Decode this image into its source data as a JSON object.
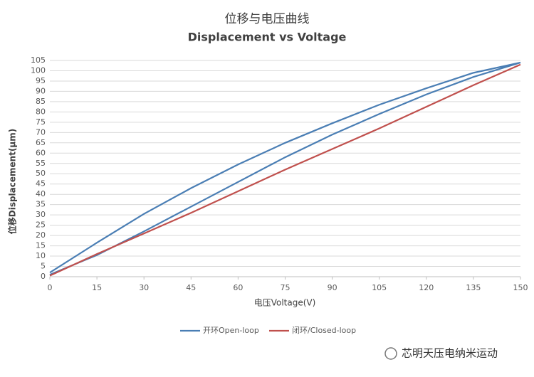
{
  "chart_data": {
    "type": "line",
    "title": "位移与电压曲线",
    "subtitle": "Displacement vs Voltage",
    "x_label": "电压Voltage(V)",
    "y_label": "位移Displacement(μm)",
    "xlim": [
      0,
      150
    ],
    "xticks": [
      0,
      15,
      30,
      45,
      60,
      75,
      90,
      105,
      120,
      135,
      150
    ],
    "ylim": [
      0,
      105
    ],
    "yticks": [
      0,
      5,
      10,
      15,
      20,
      25,
      30,
      35,
      40,
      45,
      50,
      55,
      60,
      65,
      70,
      75,
      80,
      85,
      90,
      95,
      100,
      105
    ],
    "grid": true,
    "legend": "bottom",
    "series": [
      {
        "name": "开环Open-loop",
        "color": "#4a7eb4",
        "x": [
          0,
          15,
          30,
          45,
          60,
          75,
          90,
          105,
          120,
          135,
          150,
          135,
          120,
          105,
          90,
          75,
          60,
          45,
          30,
          15,
          0
        ],
        "values": [
          1,
          10.5,
          22,
          34,
          46,
          58,
          69,
          79,
          88.5,
          97,
          104,
          99,
          91.5,
          83.5,
          74.5,
          65,
          54.5,
          43,
          30.5,
          16.5,
          2
        ]
      },
      {
        "name": "闭环/Closed-loop",
        "color": "#c0504d",
        "x": [
          0,
          15,
          30,
          45,
          60,
          75,
          90,
          105,
          120,
          135,
          150
        ],
        "values": [
          0.5,
          11,
          21,
          31,
          41.5,
          52,
          62,
          72,
          82.5,
          93,
          103
        ]
      }
    ],
    "watermark": "芯明天压电纳米运动"
  }
}
